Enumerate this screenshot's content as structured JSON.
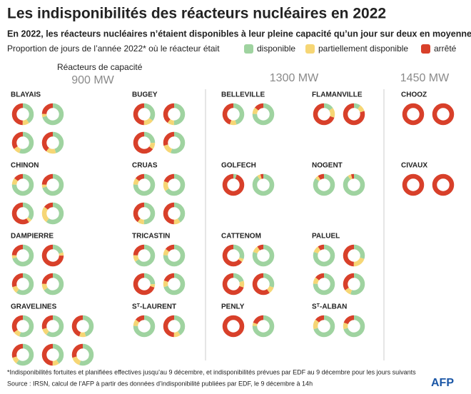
{
  "chart_data": {
    "type": "donut",
    "title": "Les indisponibilités des réacteurs nucléaires en 2022",
    "subtitle": "En 2022, les réacteurs nucléaires n’étaient disponibles à leur pleine capacité qu’un jour sur deux en moyenne",
    "legend_label": "Proportion de jours de l’année 2022* où le réacteur était",
    "series": [
      {
        "name": "disponible",
        "color": "#9fd3a0"
      },
      {
        "name": "partiellement disponible",
        "color": "#f6d675"
      },
      {
        "name": "arrêté",
        "color": "#d8402a"
      }
    ],
    "capacity_label": "Réacteurs de capacité",
    "groups": [
      {
        "label": "900 MW",
        "sites": [
          {
            "name": "BLAYAIS",
            "reactors": [
              [
                40,
                10,
                50
              ],
              [
                70,
                5,
                25
              ],
              [
                55,
                10,
                35
              ],
              [
                45,
                15,
                40
              ]
            ]
          },
          {
            "name": "BUGEY",
            "reactors": [
              [
                35,
                15,
                50
              ],
              [
                50,
                10,
                40
              ],
              [
                25,
                10,
                65
              ],
              [
                55,
                15,
                30
              ]
            ]
          },
          {
            "name": "CHINON",
            "reactors": [
              [
                75,
                10,
                15
              ],
              [
                70,
                5,
                25
              ],
              [
                35,
                5,
                60
              ],
              [
                60,
                25,
                15
              ]
            ]
          },
          {
            "name": "CRUAS",
            "reactors": [
              [
                75,
                10,
                15
              ],
              [
                65,
                15,
                20
              ],
              [
                50,
                10,
                40
              ],
              [
                40,
                10,
                50
              ]
            ]
          },
          {
            "name": "DAMPIERRE",
            "reactors": [
              [
                70,
                5,
                25
              ],
              [
                20,
                5,
                75
              ],
              [
                60,
                10,
                30
              ],
              [
                65,
                10,
                25
              ]
            ]
          },
          {
            "name": "TRICASTIN",
            "reactors": [
              [
                65,
                10,
                25
              ],
              [
                75,
                10,
                15
              ],
              [
                25,
                5,
                70
              ],
              [
                70,
                10,
                20
              ]
            ]
          },
          {
            "name": "GRAVELINES",
            "reactors": [
              [
                55,
                10,
                35
              ],
              [
                60,
                10,
                30
              ],
              [
                45,
                10,
                45
              ],
              [
                60,
                10,
                30
              ],
              [
                40,
                10,
                50
              ],
              [
                55,
                15,
                30
              ]
            ]
          },
          {
            "name": "Sᵀ-LAURENT",
            "reactors": [
              [
                75,
                10,
                15
              ],
              [
                40,
                10,
                50
              ]
            ]
          }
        ]
      },
      {
        "label": "1300 MW",
        "sites": [
          {
            "name": "BELLEVILLE",
            "reactors": [
              [
                45,
                10,
                45
              ],
              [
                75,
                10,
                15
              ]
            ]
          },
          {
            "name": "FLAMANVILLE",
            "reactors": [
              [
                15,
                15,
                70
              ],
              [
                10,
                10,
                80
              ]
            ]
          },
          {
            "name": "GOLFECH",
            "reactors": [
              [
                5,
                0,
                95
              ],
              [
                90,
                5,
                5
              ]
            ]
          },
          {
            "name": "NOGENT",
            "reactors": [
              [
                85,
                5,
                10
              ],
              [
                90,
                5,
                5
              ]
            ]
          },
          {
            "name": "CATTENOM",
            "reactors": [
              [
                30,
                5,
                65
              ],
              [
                80,
                10,
                10
              ],
              [
                20,
                10,
                70
              ],
              [
                30,
                10,
                60
              ]
            ]
          },
          {
            "name": "PALUEL",
            "reactors": [
              [
                80,
                10,
                10
              ],
              [
                30,
                20,
                50
              ],
              [
                75,
                10,
                15
              ],
              [
                55,
                10,
                35
              ]
            ]
          },
          {
            "name": "PENLY",
            "reactors": [
              [
                0,
                0,
                100
              ],
              [
                75,
                5,
                20
              ]
            ]
          },
          {
            "name": "Sᵀ-ALBAN",
            "reactors": [
              [
                70,
                15,
                15
              ],
              [
                70,
                10,
                20
              ]
            ]
          }
        ]
      },
      {
        "label": "1450 MW",
        "sites": [
          {
            "name": "CHOOZ",
            "reactors": [
              [
                0,
                0,
                100
              ],
              [
                0,
                0,
                100
              ]
            ]
          },
          {
            "name": "CIVAUX",
            "reactors": [
              [
                0,
                0,
                100
              ],
              [
                0,
                0,
                100
              ]
            ]
          }
        ]
      }
    ],
    "footnote": "*Indisponibilités fortuites et planifiées effectives jusqu’au 9 décembre, et indisponibilités prévues par EDF au 9 décembre pour les jours suivants",
    "source": "Source : IRSN, calcul de l’AFP à partir des données d’indisponibilité publiées par EDF, le 9 décembre à 14h",
    "logo": "AFP"
  }
}
